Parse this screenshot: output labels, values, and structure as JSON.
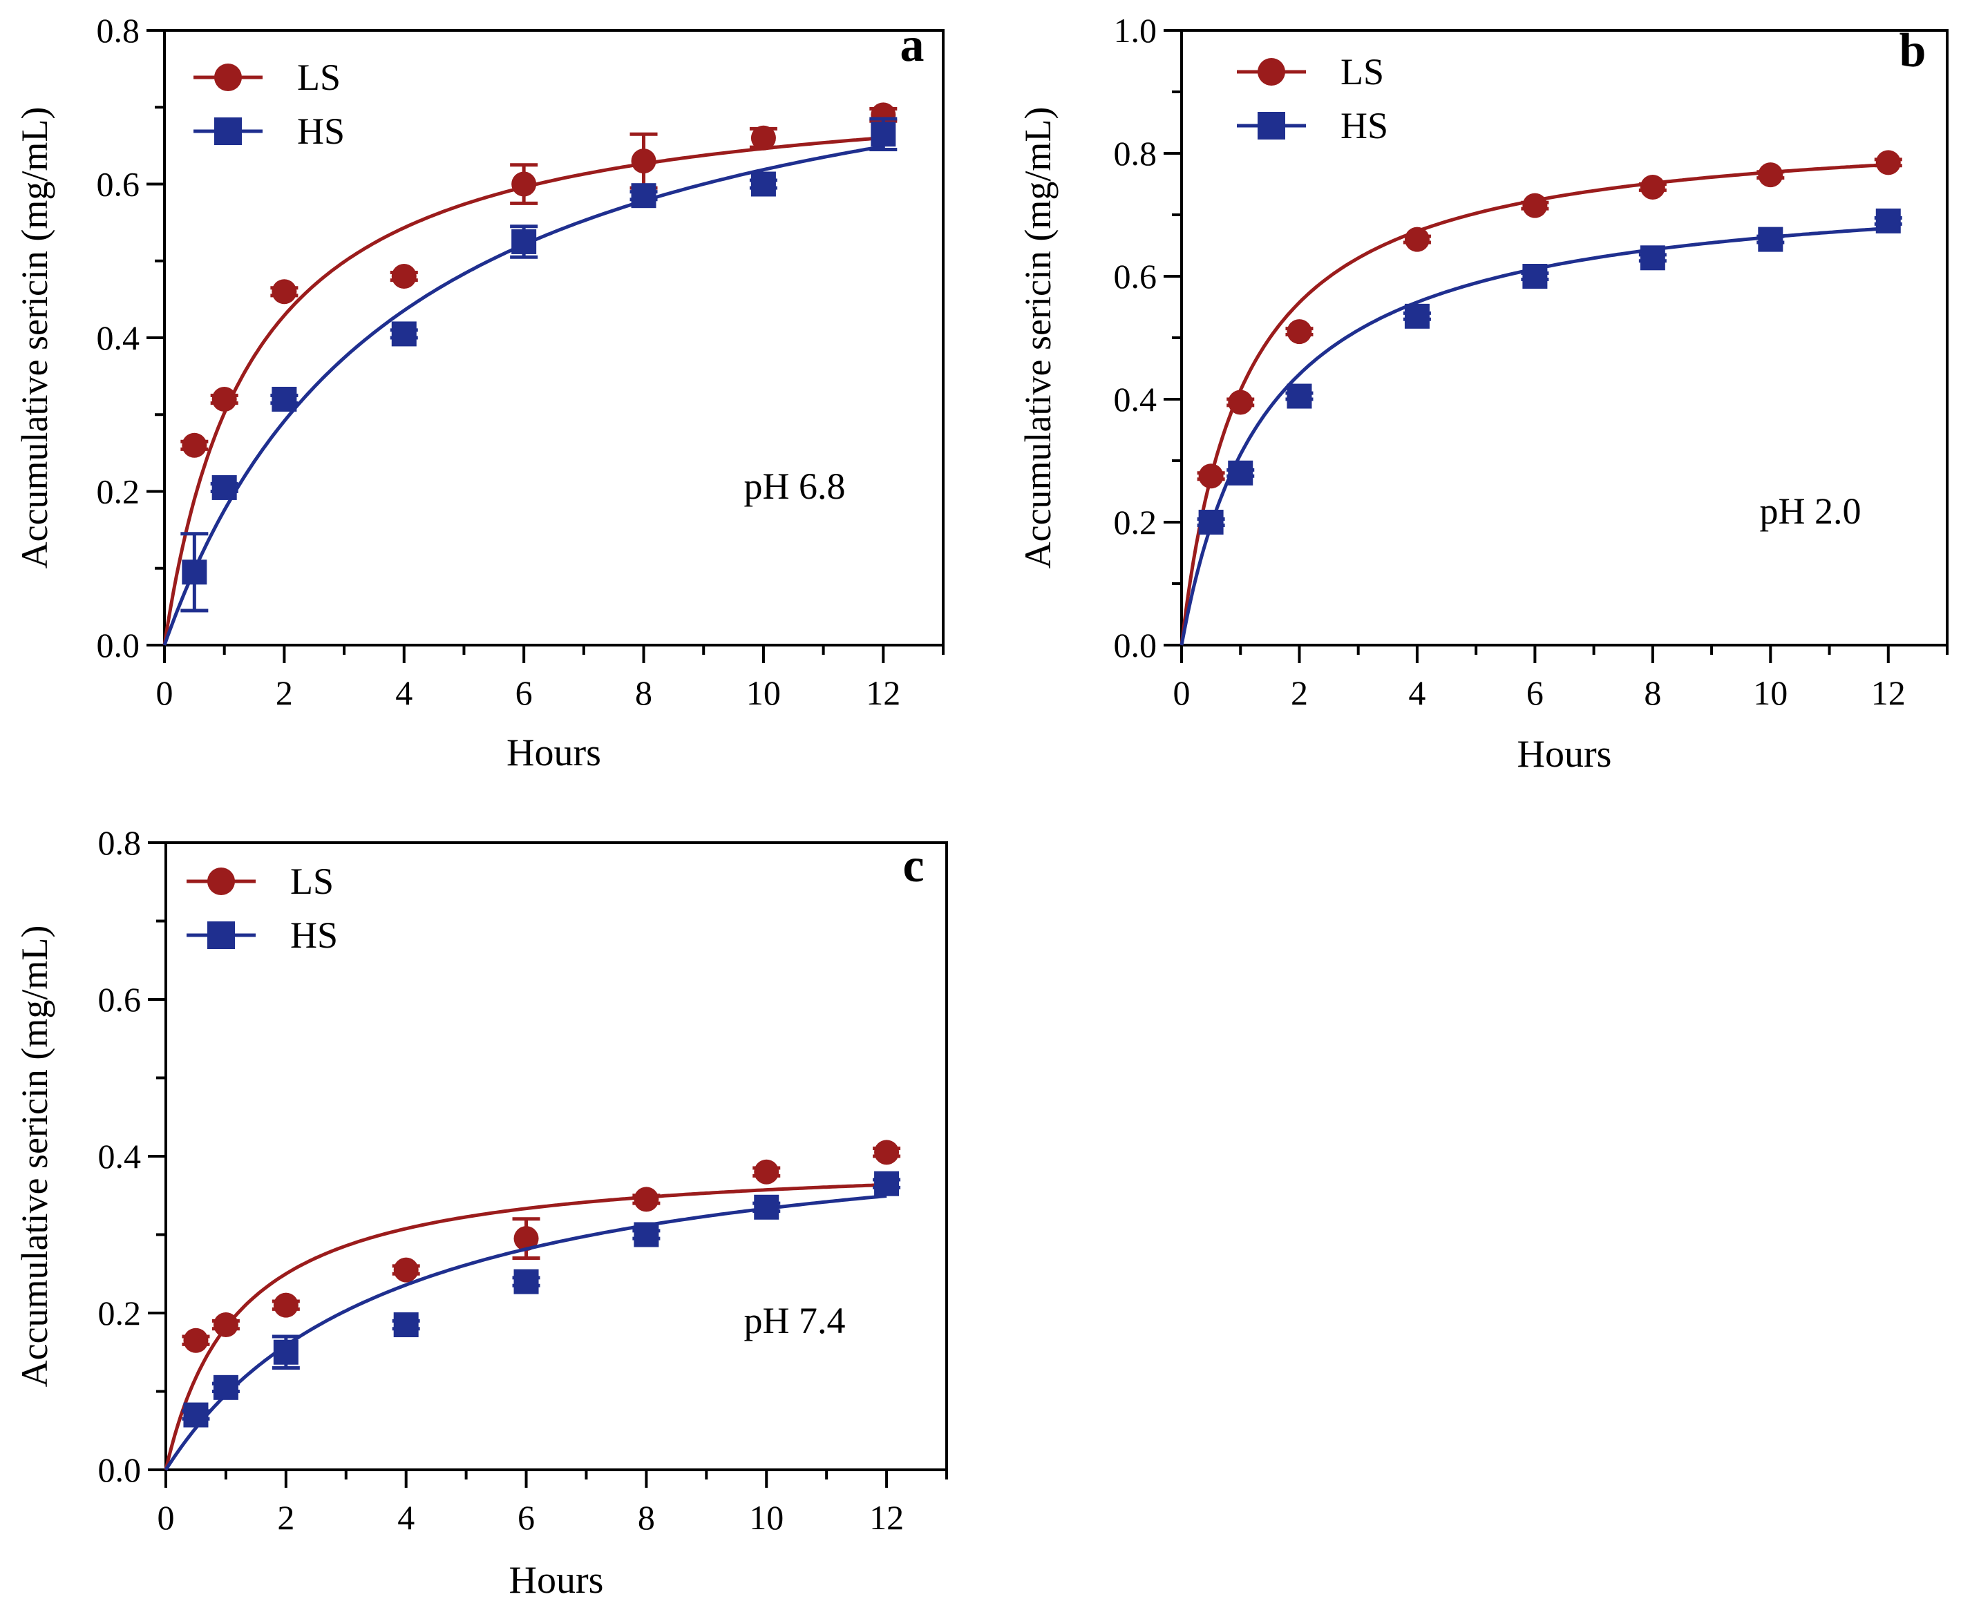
{
  "colors": {
    "LS": "#9b1c1c",
    "HS": "#1f2f8f",
    "axis": "#000000"
  },
  "chart_data": [
    {
      "panel": "a",
      "type": "scatter",
      "annotation": "pH 6.8",
      "font": "serif",
      "xlabel": "Hours",
      "ylabel": "Accumulative sericin (mg/mL)",
      "xlim": [
        0,
        13
      ],
      "ylim": [
        0,
        0.8
      ],
      "xticks": [
        0,
        2,
        4,
        6,
        8,
        10,
        12
      ],
      "yticks": [
        "0.0",
        "0.2",
        "0.4",
        "0.6",
        "0.8"
      ],
      "legend": "top-left",
      "series": [
        {
          "name": "LS",
          "marker": "circle",
          "color_key": "LS",
          "x": [
            0.5,
            1,
            2,
            4,
            6,
            8,
            10,
            12
          ],
          "y": [
            0.26,
            0.32,
            0.46,
            0.48,
            0.6,
            0.63,
            0.66,
            0.69
          ],
          "err": [
            0.005,
            0.005,
            0.005,
            0.005,
            0.025,
            0.035,
            0.012,
            0.008
          ],
          "fit": {
            "vmax": 0.74,
            "k": 1.45
          }
        },
        {
          "name": "HS",
          "marker": "square",
          "color_key": "HS",
          "x": [
            0.5,
            1,
            2,
            4,
            6,
            8,
            10,
            12
          ],
          "y": [
            0.095,
            0.205,
            0.32,
            0.405,
            0.525,
            0.585,
            0.6,
            0.665
          ],
          "err": [
            0.05,
            0.005,
            0.005,
            0.005,
            0.02,
            0.005,
            0.005,
            0.02
          ],
          "fit": {
            "vmax": 0.86,
            "k": 3.9
          }
        }
      ]
    },
    {
      "panel": "b",
      "type": "scatter",
      "annotation": "pH 2.0",
      "font": "sans",
      "xlabel": "Hours",
      "ylabel": "Accumulative sericin (mg/mL)",
      "xlim": [
        0,
        13
      ],
      "ylim": [
        0,
        1.0
      ],
      "xticks": [
        0,
        2,
        4,
        6,
        8,
        10,
        12
      ],
      "yticks": [
        "0.0",
        "0.2",
        "0.4",
        "0.6",
        "0.8",
        "1.0"
      ],
      "legend": "top-left",
      "series": [
        {
          "name": "LS",
          "marker": "circle",
          "color_key": "LS",
          "x": [
            0.5,
            1,
            2,
            4,
            6,
            8,
            10,
            12
          ],
          "y": [
            0.275,
            0.395,
            0.51,
            0.66,
            0.715,
            0.745,
            0.765,
            0.785
          ],
          "err": [
            0.005,
            0.005,
            0.005,
            0.005,
            0.005,
            0.005,
            0.005,
            0.005
          ],
          "fit": {
            "vmax": 0.85,
            "k": 1.05
          }
        },
        {
          "name": "HS",
          "marker": "square",
          "color_key": "HS",
          "x": [
            0.5,
            1,
            2,
            4,
            6,
            8,
            10,
            12
          ],
          "y": [
            0.2,
            0.28,
            0.405,
            0.535,
            0.6,
            0.63,
            0.66,
            0.69
          ],
          "err": [
            0.005,
            0.005,
            0.005,
            0.005,
            0.005,
            0.005,
            0.005,
            0.005
          ],
          "fit": {
            "vmax": 0.76,
            "k": 1.45
          }
        }
      ]
    },
    {
      "panel": "c",
      "type": "scatter",
      "annotation": "pH 7.4",
      "font": "serif",
      "xlabel": "Hours",
      "ylabel": "Accumulative sericin (mg/mL)",
      "xlim": [
        0,
        13
      ],
      "ylim": [
        0,
        0.8
      ],
      "xticks": [
        0,
        2,
        4,
        6,
        8,
        10,
        12
      ],
      "yticks": [
        "0.0",
        "0.2",
        "0.4",
        "0.6",
        "0.8"
      ],
      "legend": "top-left",
      "series": [
        {
          "name": "LS",
          "marker": "circle",
          "color_key": "LS",
          "x": [
            0.5,
            1,
            2,
            4,
            6,
            8,
            10,
            12
          ],
          "y": [
            0.165,
            0.185,
            0.21,
            0.255,
            0.295,
            0.345,
            0.38,
            0.405
          ],
          "err": [
            0.005,
            0.005,
            0.005,
            0.005,
            0.025,
            0.005,
            0.005,
            0.005
          ],
          "fit": {
            "vmax": 0.4,
            "k": 1.2
          }
        },
        {
          "name": "HS",
          "marker": "square",
          "color_key": "HS",
          "x": [
            0.5,
            1,
            2,
            4,
            6,
            8,
            10,
            12
          ],
          "y": [
            0.07,
            0.105,
            0.15,
            0.185,
            0.24,
            0.3,
            0.335,
            0.365
          ],
          "err": [
            0.005,
            0.005,
            0.02,
            0.005,
            0.005,
            0.005,
            0.005,
            0.005
          ],
          "fit": {
            "vmax": 0.46,
            "k": 3.8
          }
        }
      ]
    }
  ]
}
